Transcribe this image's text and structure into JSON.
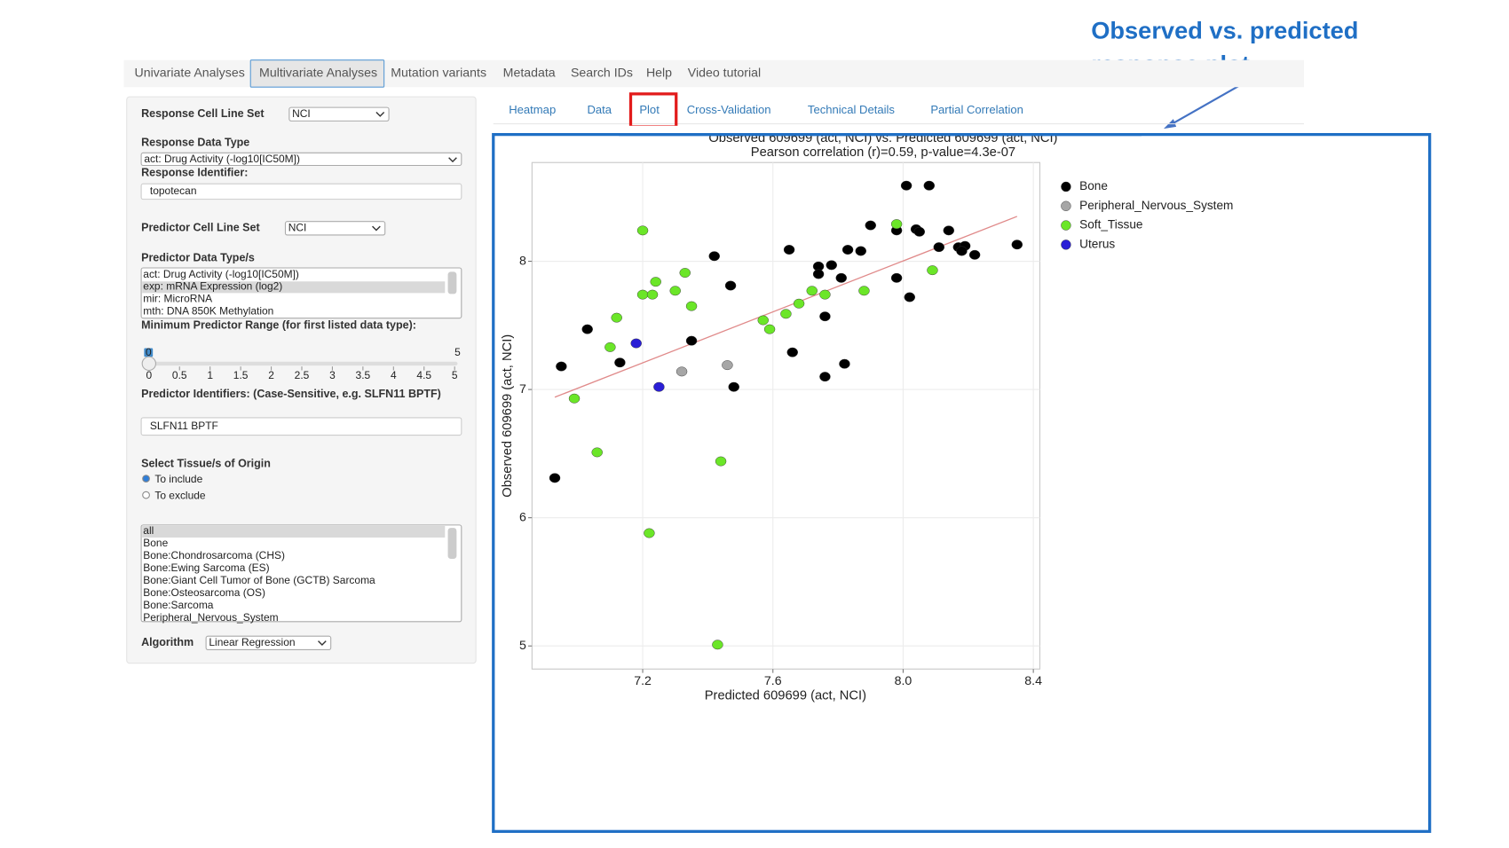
{
  "annotation": {
    "lines": [
      "Observed  vs. predicted",
      "response plot"
    ]
  },
  "nav_tabs": [
    "Univariate Analyses",
    "Multivariate Analyses",
    "Mutation variants",
    "Metadata",
    "Search IDs",
    "Help",
    "Video tutorial"
  ],
  "sub_tabs": [
    "Heatmap",
    "Data",
    "Plot",
    "Cross-Validation",
    "Technical Details",
    "Partial Correlation"
  ],
  "sidebar": {
    "response_cell_line_set": {
      "label": "Response Cell Line Set",
      "value": "NCI"
    },
    "response_data_type": {
      "label": "Response Data Type",
      "value": "act: Drug Activity (-log10[IC50M])"
    },
    "response_identifier": {
      "label": "Response Identifier:",
      "value": "topotecan"
    },
    "predictor_cell_line_set": {
      "label": "Predictor Cell Line Set",
      "value": "NCI"
    },
    "predictor_data_types": {
      "label": "Predictor Data Type/s",
      "options": [
        "act: Drug Activity (-log10[IC50M])",
        "exp: mRNA Expression (log2)",
        "mir: MicroRNA",
        "mth: DNA 850K Methylation"
      ]
    },
    "min_predictor_range": {
      "label": "Minimum Predictor Range (for first listed data type):",
      "value": 0,
      "max": 5,
      "ticks": [
        0,
        0.5,
        1,
        1.5,
        2,
        2.5,
        3,
        3.5,
        4,
        4.5,
        5
      ]
    },
    "predictor_identifiers": {
      "label": "Predictor Identifiers: (Case-Sensitive, e.g. SLFN11 BPTF)",
      "value": "SLFN11 BPTF"
    },
    "tissue_origin": {
      "label": "Select Tissue/s of Origin",
      "options": [
        "To include",
        "To exclude"
      ]
    },
    "tissues": [
      "all",
      "Bone",
      "Bone:Chondrosarcoma (CHS)",
      "Bone:Ewing Sarcoma (ES)",
      "Bone:Giant Cell Tumor of Bone (GCTB) Sarcoma",
      "Bone:Osteosarcoma (OS)",
      "Bone:Sarcoma",
      "Peripheral_Nervous_System"
    ],
    "algorithm": {
      "label": "Algorithm",
      "value": "Linear Regression"
    }
  },
  "chart_data": {
    "type": "scatter",
    "title": "Observed 609699 (act, NCI) vs. Predicted 609699 (act, NCI)",
    "subtitle": "Pearson correlation (r)=0.59, p-value=4.3e-07",
    "x_label": "Predicted 609699 (act, NCI)",
    "y_label": "Observed 609699 (act, NCI)",
    "xlim": [
      6.86,
      8.42
    ],
    "ylim": [
      4.82,
      8.77
    ],
    "xticks": [
      7.2,
      7.6,
      {
        "value": 8,
        "label": "8.0"
      },
      8.4
    ],
    "yticks": [
      5,
      6,
      7,
      8
    ],
    "grid": true,
    "legend": "right",
    "series": [
      {
        "name": "Bone",
        "color": "#000000",
        "x": [
          8.01,
          8.08,
          7.42,
          7.65,
          7.74,
          7.74,
          7.78,
          7.81,
          7.83,
          7.87,
          7.9,
          7.98,
          8.04,
          8.05,
          8.14,
          8.11,
          8.17,
          8.19,
          8.18,
          8.22,
          8.35,
          7.98,
          8.02,
          7.47,
          7.76,
          7.35,
          7.03,
          6.95,
          7.13,
          7.66,
          7.82,
          7.76,
          7.48,
          6.93
        ],
        "values": [
          8.59,
          8.59,
          8.04,
          8.09,
          7.96,
          7.9,
          7.97,
          7.87,
          8.09,
          8.08,
          8.28,
          8.24,
          8.25,
          8.23,
          8.24,
          8.11,
          8.11,
          8.12,
          8.08,
          8.05,
          8.13,
          7.87,
          7.72,
          7.81,
          7.57,
          7.38,
          7.47,
          7.18,
          7.21,
          7.29,
          7.2,
          7.1,
          7.02,
          6.31
        ]
      },
      {
        "name": "Peripheral_Nervous_System",
        "color": "#a6a6a6",
        "x": [
          7.32,
          7.46
        ],
        "values": [
          7.14,
          7.19
        ]
      },
      {
        "name": "Soft_Tissue",
        "color": "#6be628",
        "x": [
          7.2,
          7.98,
          7.33,
          7.24,
          7.2,
          7.23,
          7.3,
          7.35,
          7.12,
          7.72,
          7.76,
          7.88,
          8.09,
          7.68,
          7.64,
          7.57,
          7.59,
          7.1,
          6.99,
          7.06,
          7.44,
          7.22,
          7.43
        ],
        "values": [
          8.24,
          8.29,
          7.91,
          7.84,
          7.74,
          7.74,
          7.77,
          7.65,
          7.56,
          7.77,
          7.74,
          7.77,
          7.93,
          7.67,
          7.59,
          7.54,
          7.47,
          7.33,
          6.93,
          6.51,
          6.44,
          5.88,
          5.01
        ]
      },
      {
        "name": "Uterus",
        "color": "#2a1ed6",
        "x": [
          7.18,
          7.25
        ],
        "values": [
          7.36,
          7.02
        ]
      }
    ],
    "fit": {
      "color": "#e08a8a",
      "x": [
        6.93,
        8.35
      ],
      "values": [
        6.94,
        8.35
      ]
    }
  }
}
